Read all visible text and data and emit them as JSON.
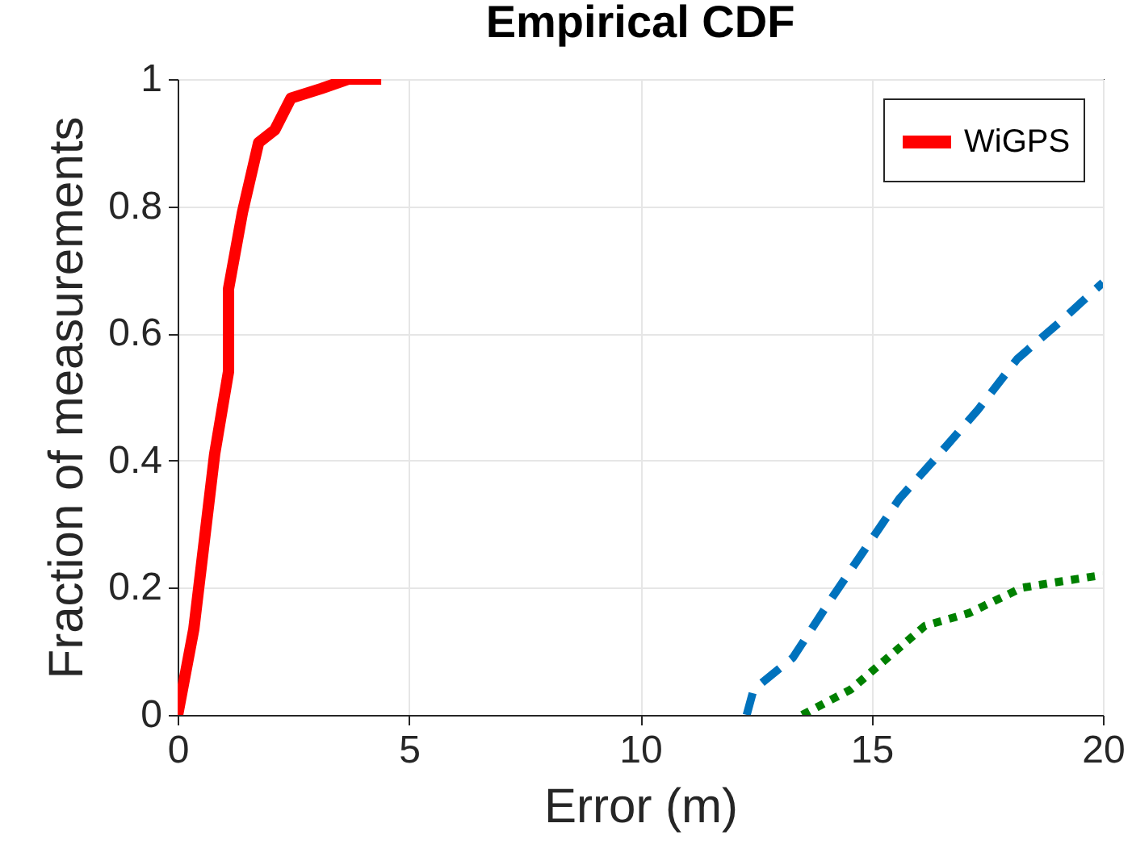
{
  "chart_data": {
    "type": "line",
    "title": "Empirical CDF",
    "xlabel": "Error (m)",
    "ylabel": "Fraction of measurements",
    "xlim": [
      0,
      20
    ],
    "xticks": [
      0,
      5,
      10,
      15,
      20
    ],
    "ylim": [
      0,
      1
    ],
    "yticks": [
      0,
      0.2,
      0.4,
      0.6,
      0.8,
      1
    ],
    "grid": true,
    "legend": "top right",
    "marker": "none",
    "series": [
      {
        "name": "WiGPS",
        "color": "#ff0000",
        "line_style": "solid",
        "x": [
          0,
          0.35,
          0.8,
          1.1,
          1.1,
          1.4,
          1.75,
          2.1,
          2.45,
          3.1,
          3.7,
          4.4
        ],
        "values": [
          0,
          0.135,
          0.41,
          0.54,
          0.67,
          0.79,
          0.9,
          0.92,
          0.97,
          0.985,
          1,
          1
        ]
      },
      {
        "color": "#0072bd",
        "line_style": "dashed",
        "x": [
          12.3,
          12.45,
          13.3,
          14.15,
          14.85,
          15.6,
          16.4,
          17.3,
          18.15,
          19.1,
          20
        ],
        "values": [
          0,
          0.04,
          0.09,
          0.185,
          0.26,
          0.34,
          0.405,
          0.48,
          0.56,
          0.62,
          0.68
        ]
      },
      {
        "color": "#008000",
        "line_style": "dotted",
        "x": [
          13.5,
          14.55,
          15.35,
          16.15,
          17.1,
          18.25,
          19.1,
          20
        ],
        "values": [
          0,
          0.04,
          0.09,
          0.14,
          0.16,
          0.2,
          0.21,
          0.22
        ]
      }
    ]
  }
}
